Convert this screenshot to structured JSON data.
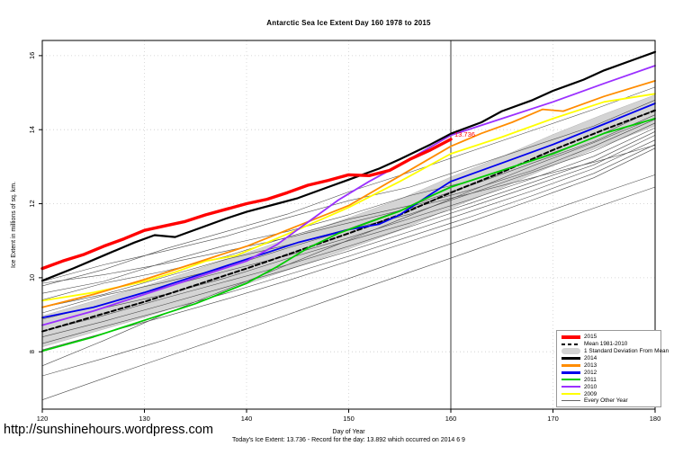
{
  "title": "Antarctic Sea Ice Extent Day 160 1978 to 2015",
  "axes": {
    "ylabel": "Ice Extent in millions of sq. km.",
    "xlabel": "Day of Year",
    "x_ticks": [
      120,
      130,
      140,
      150,
      160,
      170,
      180
    ],
    "y_ticks": [
      8,
      10,
      12,
      14,
      16
    ],
    "xlim": [
      120,
      180
    ],
    "ylim": [
      6.45,
      16.41
    ]
  },
  "footer": {
    "url": "http://sunshinehours.wordpress.com",
    "note": "Today's Ice Extent: 13.736  - Record for the day: 13.892 which occurred on 2014 6 9"
  },
  "annotations": {
    "today_line_day": 160,
    "today_value": 13.736,
    "today_value_label": "13.736",
    "label_color": "#ff0000",
    "today_line_color": "#3a3a3a"
  },
  "legend": {
    "items": [
      {
        "label": "2015",
        "color": "#ff0000",
        "style": "thick"
      },
      {
        "label": "Mean 1981-2010",
        "color": "#000000",
        "style": "dashed"
      },
      {
        "label": "1 Standard Deviation From Mean",
        "color": "#d3d3d3",
        "style": "band"
      },
      {
        "label": "2014",
        "color": "#000000",
        "style": "medium"
      },
      {
        "label": "2013",
        "color": "#ff8c00",
        "style": "medium"
      },
      {
        "label": "2012",
        "color": "#0000ee",
        "style": "medium"
      },
      {
        "label": "2011",
        "color": "#00cc00",
        "style": "medium"
      },
      {
        "label": "2010",
        "color": "#9b30ff",
        "style": "medium"
      },
      {
        "label": "2009",
        "color": "#ffff00",
        "style": "medium"
      },
      {
        "label": "Every Other Year",
        "color": "#666666",
        "style": "thin"
      }
    ]
  },
  "chart_data": {
    "type": "line",
    "title": "Antarctic Sea Ice Extent Day 160 1978 to 2015",
    "xlabel": "Day of Year",
    "ylabel": "Ice Extent in millions of sq. km.",
    "xlim": [
      120,
      180
    ],
    "ylim": [
      6.45,
      16.41
    ],
    "grid": "dotted",
    "legend_position": "bottom-right",
    "band": {
      "name": "1 Standard Deviation From Mean",
      "color": "#d4d4d4",
      "days": [
        120,
        125,
        130,
        135,
        140,
        145,
        150,
        155,
        160,
        165,
        170,
        175,
        180
      ],
      "upper": [
        8.97,
        9.37,
        9.77,
        10.22,
        10.67,
        11.14,
        11.62,
        12.12,
        12.72,
        13.27,
        13.87,
        14.42,
        14.94
      ],
      "lower": [
        8.13,
        8.53,
        8.93,
        9.38,
        9.83,
        10.3,
        10.78,
        11.28,
        11.88,
        12.43,
        13.03,
        13.58,
        14.1
      ]
    },
    "series": [
      {
        "name": "Mean 1981-2010",
        "color": "#000000",
        "width": 2,
        "dash": "5,3",
        "days": [
          120,
          125,
          130,
          135,
          140,
          145,
          150,
          155,
          160,
          165,
          170,
          175,
          180
        ],
        "values": [
          8.55,
          8.95,
          9.35,
          9.8,
          10.25,
          10.72,
          11.2,
          11.7,
          12.3,
          12.85,
          13.45,
          14.0,
          14.52
        ]
      },
      {
        "name": "2009",
        "color": "#ffff00",
        "width": 1.8,
        "days": [
          120,
          125,
          130,
          133,
          136,
          139,
          142,
          145,
          150,
          155,
          160,
          165,
          170,
          175,
          180
        ],
        "values": [
          9.38,
          9.6,
          9.9,
          10.15,
          10.45,
          10.6,
          10.95,
          11.3,
          11.9,
          12.6,
          13.35,
          13.8,
          14.3,
          14.75,
          14.97
        ]
      },
      {
        "name": "2013",
        "color": "#ff8c00",
        "width": 1.8,
        "days": [
          120,
          125,
          130,
          135,
          140,
          145,
          150,
          155,
          160,
          163,
          166,
          169,
          171,
          175,
          180
        ],
        "values": [
          9.2,
          9.55,
          9.95,
          10.4,
          10.85,
          11.4,
          11.95,
          12.75,
          13.55,
          13.9,
          14.2,
          14.55,
          14.5,
          14.9,
          15.32
        ]
      },
      {
        "name": "2012",
        "color": "#0000ee",
        "width": 1.8,
        "days": [
          120,
          125,
          130,
          135,
          140,
          145,
          150,
          153,
          155,
          158,
          160,
          165,
          170,
          175,
          180
        ],
        "values": [
          8.92,
          9.2,
          9.6,
          10.05,
          10.5,
          10.95,
          11.3,
          11.45,
          11.7,
          12.25,
          12.6,
          13.1,
          13.6,
          14.15,
          14.71
        ]
      },
      {
        "name": "2011",
        "color": "#00cc00",
        "width": 1.8,
        "days": [
          120,
          125,
          130,
          135,
          140,
          143,
          146,
          149,
          152,
          155,
          158,
          160,
          165,
          170,
          175,
          180
        ],
        "values": [
          8.02,
          8.4,
          8.85,
          9.3,
          9.85,
          10.3,
          10.8,
          11.2,
          11.5,
          11.8,
          12.2,
          12.45,
          12.9,
          13.35,
          13.9,
          14.3
        ]
      },
      {
        "name": "2010",
        "color": "#9b30ff",
        "width": 1.8,
        "days": [
          120,
          125,
          130,
          135,
          140,
          143,
          146,
          149,
          152,
          155,
          160,
          165,
          170,
          175,
          180
        ],
        "values": [
          8.72,
          9.1,
          9.55,
          10.0,
          10.45,
          10.9,
          11.5,
          12.1,
          12.6,
          13.05,
          13.85,
          14.3,
          14.75,
          15.25,
          15.73
        ]
      },
      {
        "name": "2014",
        "color": "#000000",
        "width": 2.2,
        "days": [
          120,
          123,
          126,
          129,
          131,
          133,
          135,
          138,
          140,
          143,
          145,
          148,
          150,
          153,
          155,
          158,
          160,
          163,
          165,
          168,
          170,
          173,
          175,
          178,
          180
        ],
        "values": [
          9.92,
          10.25,
          10.6,
          10.95,
          11.15,
          11.1,
          11.3,
          11.6,
          11.78,
          12.0,
          12.15,
          12.45,
          12.65,
          12.95,
          13.2,
          13.6,
          13.89,
          14.2,
          14.5,
          14.8,
          15.05,
          15.35,
          15.6,
          15.9,
          16.1
        ]
      },
      {
        "name": "2015",
        "color": "#ff0000",
        "width": 3.4,
        "days": [
          120,
          122,
          124,
          126,
          128,
          130,
          132,
          134,
          136,
          138,
          140,
          142,
          144,
          146,
          148,
          150,
          152,
          154,
          156,
          158,
          160
        ],
        "values": [
          10.25,
          10.45,
          10.62,
          10.85,
          11.05,
          11.28,
          11.4,
          11.52,
          11.7,
          11.85,
          12.0,
          12.12,
          12.3,
          12.5,
          12.63,
          12.78,
          12.76,
          12.9,
          13.2,
          13.45,
          13.74
        ]
      }
    ],
    "other_years": {
      "name": "Every Other Year",
      "color": "#4d4d4d",
      "width": 0.6,
      "days": [
        120,
        126,
        132,
        138,
        144,
        150,
        156,
        162,
        168,
        174,
        180
      ],
      "lines": [
        [
          9.78,
          10.22,
          10.78,
          11.25,
          11.72,
          12.32,
          12.85,
          13.42,
          13.98,
          14.55,
          15.15
        ],
        [
          9.9,
          10.35,
          10.72,
          11.12,
          11.62,
          12.08,
          12.45,
          13.0,
          13.55,
          14.1,
          14.8
        ],
        [
          9.58,
          9.9,
          10.42,
          10.88,
          11.25,
          11.7,
          12.22,
          12.62,
          13.18,
          13.78,
          14.55
        ],
        [
          9.4,
          9.85,
          10.18,
          10.58,
          11.1,
          11.58,
          11.95,
          12.5,
          13.1,
          13.68,
          14.4
        ],
        [
          9.2,
          9.55,
          10.02,
          10.5,
          10.88,
          11.32,
          11.92,
          12.38,
          12.9,
          13.55,
          14.28
        ],
        [
          9.05,
          9.52,
          9.88,
          10.28,
          10.8,
          11.3,
          11.72,
          12.28,
          12.85,
          13.42,
          14.18
        ],
        [
          8.88,
          9.28,
          9.75,
          10.18,
          10.6,
          11.08,
          11.6,
          12.12,
          12.68,
          13.28,
          14.05
        ],
        [
          8.72,
          9.18,
          9.55,
          10.0,
          10.52,
          11.0,
          11.48,
          12.02,
          12.58,
          13.15,
          13.95
        ],
        [
          8.55,
          8.98,
          9.45,
          9.9,
          10.35,
          10.85,
          11.38,
          11.92,
          12.48,
          13.05,
          13.85
        ],
        [
          8.4,
          8.82,
          9.28,
          9.75,
          10.22,
          10.72,
          11.25,
          11.8,
          12.35,
          12.95,
          13.72
        ],
        [
          8.22,
          8.68,
          9.12,
          9.58,
          10.08,
          10.58,
          11.12,
          11.65,
          12.22,
          12.82,
          13.6
        ],
        [
          8.05,
          8.5,
          8.95,
          9.42,
          9.92,
          10.45,
          10.98,
          11.52,
          12.1,
          12.7,
          13.5
        ],
        [
          7.62,
          8.3,
          9.02,
          9.68,
          10.35,
          11.02,
          11.68,
          12.35,
          13.02,
          13.65,
          14.32
        ],
        [
          7.35,
          7.82,
          8.32,
          8.88,
          9.42,
          9.98,
          10.55,
          11.1,
          11.65,
          12.22,
          12.78
        ],
        [
          6.7,
          7.28,
          7.85,
          8.42,
          9.0,
          9.58,
          10.15,
          10.72,
          11.3,
          11.88,
          12.45
        ],
        [
          9.85,
          10.08,
          10.38,
          10.72,
          11.08,
          11.48,
          11.88,
          12.28,
          12.7,
          13.12,
          13.58
        ]
      ]
    }
  }
}
